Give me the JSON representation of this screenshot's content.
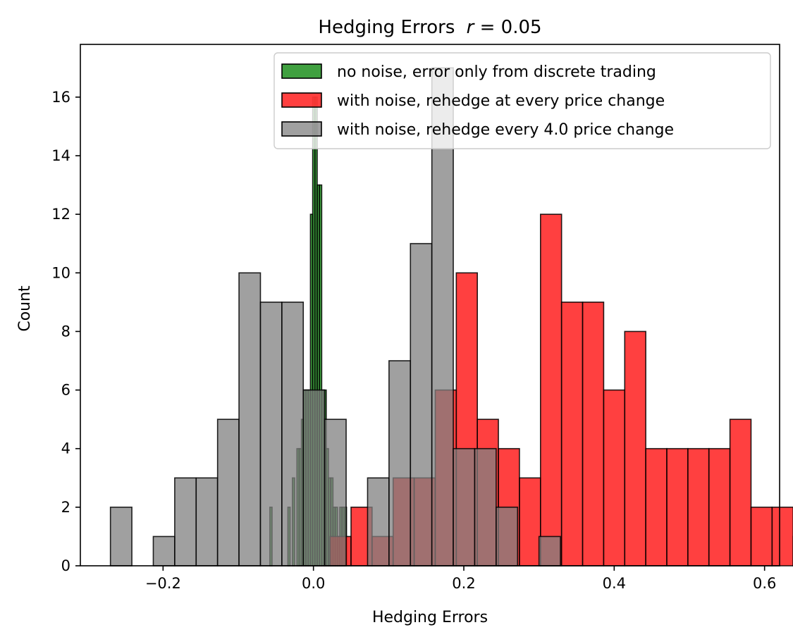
{
  "chart_data": {
    "type": "bar",
    "title": "Hedging Errors r = 0.05",
    "title_plain": "Hedging Errors",
    "title_italic": "r",
    "title_value": " = 0.05",
    "xlabel": "Hedging Errors",
    "ylabel": "Count",
    "xlim": [
      -0.31,
      0.62
    ],
    "ylim": [
      0,
      17.8
    ],
    "xticks": [
      -0.2,
      0.0,
      0.2,
      0.4,
      0.6
    ],
    "xtick_labels": [
      "−0.2",
      "0.0",
      "0.2",
      "0.4",
      "0.6"
    ],
    "yticks": [
      0,
      2,
      4,
      6,
      8,
      10,
      12,
      14,
      16
    ],
    "ytick_labels": [
      "0",
      "2",
      "4",
      "6",
      "8",
      "10",
      "12",
      "14",
      "16"
    ],
    "grid": false,
    "legend_position": "top-right",
    "series": [
      {
        "name": "no noise, error only from discrete trading",
        "color": "#008000",
        "edge": "#000000",
        "alpha": 0.75,
        "bin_start": -0.058,
        "bin_width": 0.003,
        "counts": [
          2,
          0,
          0,
          0,
          0,
          0,
          0,
          0,
          2,
          0,
          3,
          0,
          4,
          4,
          5,
          6,
          6,
          6,
          12,
          16,
          16,
          13,
          13,
          6,
          6,
          4,
          3,
          3,
          2,
          2,
          1,
          2,
          2,
          2
        ]
      },
      {
        "name": "with noise, rehedge at every price change",
        "color": "#ff0000",
        "edge": "#000000",
        "alpha": 0.75,
        "bin_start": 0.022,
        "bin_width": 0.028,
        "counts": [
          1,
          2,
          1,
          3,
          3,
          6,
          10,
          5,
          4,
          3,
          12,
          9,
          9,
          6,
          8,
          4,
          4,
          4,
          4,
          5,
          2,
          2,
          1
        ]
      },
      {
        "name": "with noise, rehedge every 4.0 price change",
        "color": "#808080",
        "edge": "#000000",
        "alpha": 0.75,
        "bin_start": -0.27,
        "bin_width": 0.0285,
        "counts": [
          2,
          0,
          1,
          3,
          3,
          5,
          10,
          9,
          9,
          6,
          5,
          0,
          3,
          7,
          11,
          17,
          4,
          4,
          2,
          0,
          1
        ]
      }
    ]
  }
}
